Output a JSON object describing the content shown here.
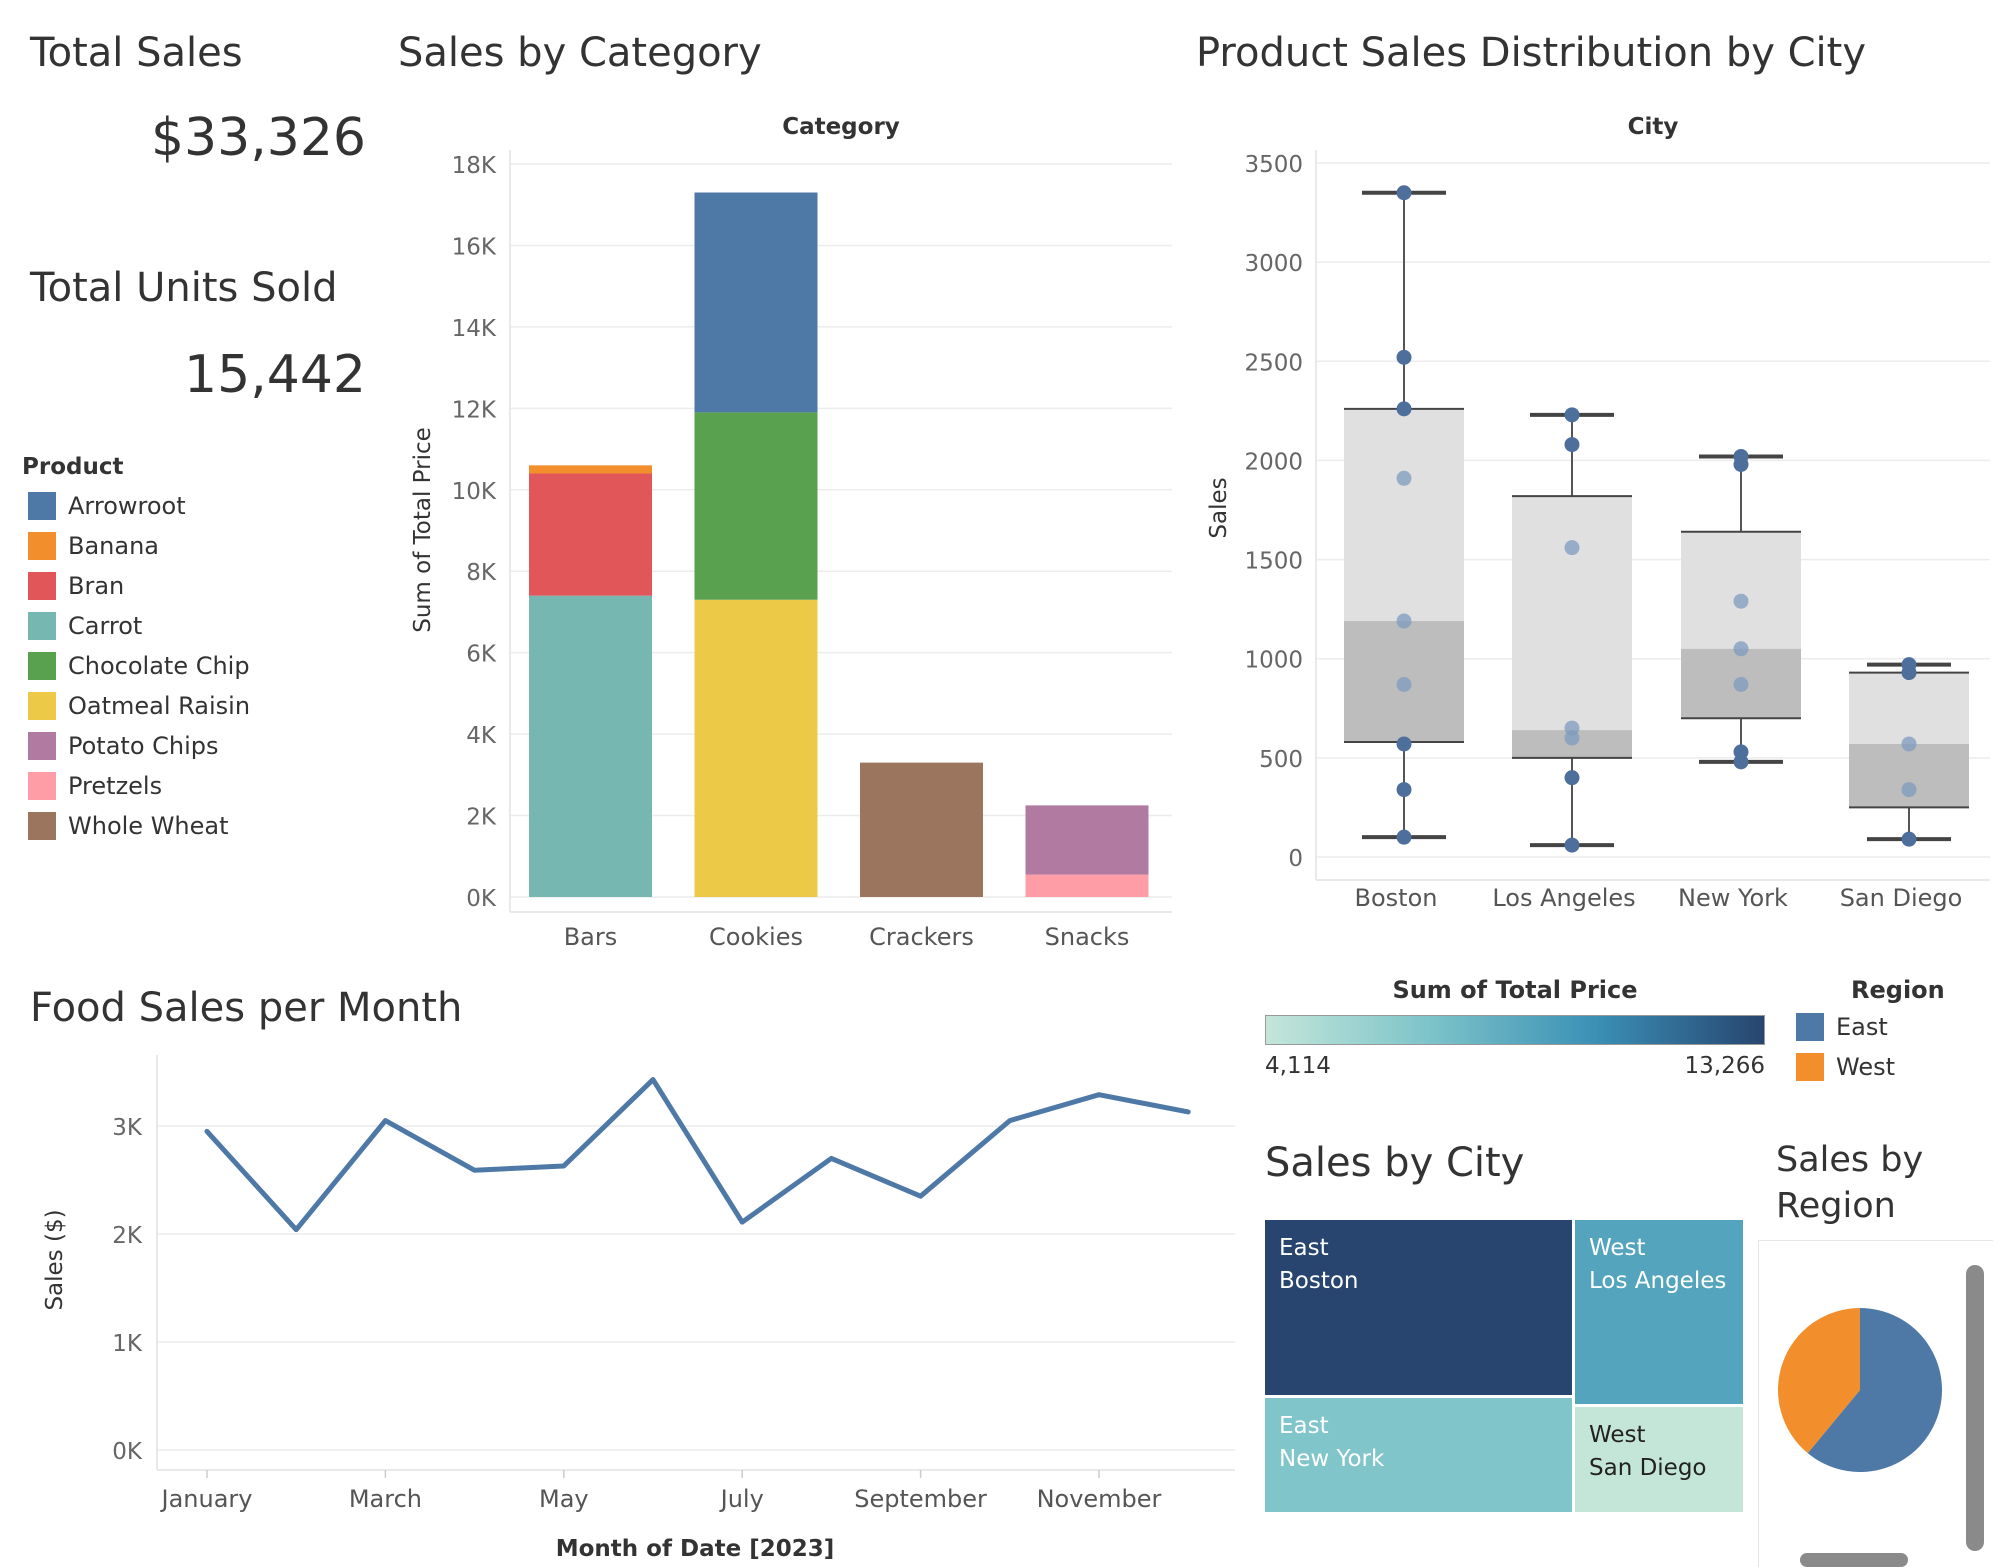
{
  "kpis": {
    "total_sales_label": "Total Sales",
    "total_sales_value": "$33,326",
    "total_units_label": "Total Units Sold",
    "total_units_value": "15,442"
  },
  "product_legend": {
    "title": "Product",
    "items": [
      {
        "label": "Arrowroot",
        "color": "#4e79a7"
      },
      {
        "label": "Banana",
        "color": "#f28e2b"
      },
      {
        "label": "Bran",
        "color": "#e15759"
      },
      {
        "label": "Carrot",
        "color": "#76b7b2"
      },
      {
        "label": "Chocolate Chip",
        "color": "#59a14f"
      },
      {
        "label": "Oatmeal Raisin",
        "color": "#edc948"
      },
      {
        "label": "Potato Chips",
        "color": "#b07aa1"
      },
      {
        "label": "Pretzels",
        "color": "#ff9da7"
      },
      {
        "label": "Whole Wheat",
        "color": "#9c755f"
      }
    ]
  },
  "titles": {
    "category": "Sales by Category",
    "boxplot": "Product Sales Distribution by City",
    "line": "Food Sales per Month",
    "treemap": "Sales by City",
    "pie_line1": "Sales by",
    "pie_line2": "Region"
  },
  "treemap_legend": {
    "title": "Sum of Total Price",
    "min": "4,114",
    "max": "13,266"
  },
  "region_legend": {
    "title": "Region",
    "items": [
      {
        "label": "East",
        "color": "#4e79a7"
      },
      {
        "label": "West",
        "color": "#f28e2b"
      }
    ]
  },
  "chart_data": [
    {
      "id": "sales_by_category",
      "type": "bar",
      "stacked": true,
      "title": "Sales by Category",
      "header": "Category",
      "xlabel": "",
      "ylabel": "Sum of Total Price",
      "ylim": [
        0,
        18000
      ],
      "yticks": [
        "0K",
        "2K",
        "4K",
        "6K",
        "8K",
        "10K",
        "12K",
        "14K",
        "16K",
        "18K"
      ],
      "categories": [
        "Bars",
        "Cookies",
        "Crackers",
        "Snacks"
      ],
      "series": [
        {
          "name": "Carrot",
          "color": "#76b7b2",
          "values": [
            7400,
            0,
            0,
            0
          ]
        },
        {
          "name": "Bran",
          "color": "#e15759",
          "values": [
            3000,
            0,
            0,
            0
          ]
        },
        {
          "name": "Banana",
          "color": "#f28e2b",
          "values": [
            200,
            0,
            0,
            0
          ]
        },
        {
          "name": "Oatmeal Raisin",
          "color": "#edc948",
          "values": [
            0,
            7300,
            0,
            0
          ]
        },
        {
          "name": "Chocolate Chip",
          "color": "#59a14f",
          "values": [
            0,
            4600,
            0,
            0
          ]
        },
        {
          "name": "Arrowroot",
          "color": "#4e79a7",
          "values": [
            0,
            5400,
            0,
            0
          ]
        },
        {
          "name": "Whole Wheat",
          "color": "#9c755f",
          "values": [
            0,
            0,
            3300,
            0
          ]
        },
        {
          "name": "Pretzels",
          "color": "#ff9da7",
          "values": [
            0,
            0,
            0,
            550
          ]
        },
        {
          "name": "Potato Chips",
          "color": "#b07aa1",
          "values": [
            0,
            0,
            0,
            1700
          ]
        }
      ]
    },
    {
      "id": "sales_distribution_by_city",
      "type": "scatter",
      "subtype": "boxplot",
      "title": "Product Sales Distribution by City",
      "header": "City",
      "ylabel": "Sales",
      "ylim": [
        0,
        3500
      ],
      "yticks": [
        "0",
        "500",
        "1000",
        "1500",
        "2000",
        "2500",
        "3000",
        "3500"
      ],
      "categories": [
        "Boston",
        "Los Angeles",
        "New York",
        "San Diego"
      ],
      "boxes": [
        {
          "min": 100,
          "q1": 580,
          "median": 1190,
          "q3": 2260,
          "max": 3350,
          "points": [
            3350,
            2520,
            2260,
            1910,
            1190,
            870,
            570,
            340,
            100
          ]
        },
        {
          "min": 60,
          "q1": 500,
          "median": 640,
          "q3": 1820,
          "max": 2230,
          "points": [
            2230,
            2080,
            1560,
            650,
            600,
            400,
            60
          ]
        },
        {
          "min": 480,
          "q1": 700,
          "median": 1050,
          "q3": 1640,
          "max": 2020,
          "points": [
            2020,
            1980,
            1290,
            1050,
            870,
            530,
            480
          ]
        },
        {
          "min": 90,
          "q1": 250,
          "median": 570,
          "q3": 930,
          "max": 970,
          "points": [
            970,
            930,
            570,
            340,
            90
          ]
        }
      ]
    },
    {
      "id": "food_sales_per_month",
      "type": "line",
      "title": "Food Sales per Month",
      "xlabel": "Month of Date [2023]",
      "ylabel": "Sales ($)",
      "ylim": [
        0,
        3500
      ],
      "yticks": [
        "0K",
        "1K",
        "2K",
        "3K"
      ],
      "x": [
        "January",
        "February",
        "March",
        "April",
        "May",
        "June",
        "July",
        "August",
        "September",
        "October",
        "November",
        "December"
      ],
      "xtick_labels": [
        "January",
        "March",
        "May",
        "July",
        "September",
        "November"
      ],
      "series": [
        {
          "color": "#4e79a7",
          "values": [
            2950,
            2040,
            3050,
            2590,
            2630,
            3430,
            2110,
            2700,
            2350,
            3050,
            3290,
            3130
          ]
        }
      ]
    },
    {
      "id": "sales_by_city_treemap",
      "type": "heatmap",
      "subtype": "treemap",
      "title": "Sales by City",
      "color_range": [
        4114,
        13266
      ],
      "cells": [
        {
          "region": "East",
          "city": "Boston",
          "value": 13266
        },
        {
          "region": "West",
          "city": "Los Angeles",
          "value": 9000
        },
        {
          "region": "East",
          "city": "New York",
          "value": 7000
        },
        {
          "region": "West",
          "city": "San Diego",
          "value": 4114
        }
      ]
    },
    {
      "id": "sales_by_region",
      "type": "pie",
      "title": "Sales by Region",
      "slices": [
        {
          "name": "East",
          "color": "#4e79a7",
          "value": 0.61
        },
        {
          "name": "West",
          "color": "#f28e2b",
          "value": 0.39
        }
      ]
    }
  ]
}
